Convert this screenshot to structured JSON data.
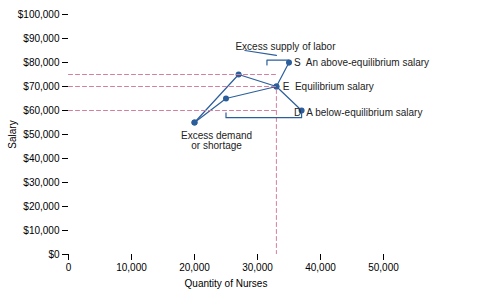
{
  "chart_data": {
    "type": "line",
    "xlabel": "Quantity of Nurses",
    "ylabel": "Salary",
    "xlim": [
      0,
      50000
    ],
    "ylim": [
      0,
      100000
    ],
    "xticks": [
      0,
      {
        "value": 10000,
        "label": "10,000"
      },
      {
        "value": 20000,
        "label": "20,000"
      },
      {
        "value": 30000,
        "label": "30,000"
      },
      {
        "value": 40000,
        "label": "40,000"
      },
      {
        "value": 50000,
        "label": "50,000"
      }
    ],
    "yticks": [
      {
        "value": 0,
        "label": "$0"
      },
      {
        "value": 10000,
        "label": "$10,000"
      },
      {
        "value": 20000,
        "label": "$20,000"
      },
      {
        "value": 30000,
        "label": "$30,000"
      },
      {
        "value": 40000,
        "label": "$40,000"
      },
      {
        "value": 50000,
        "label": "$50,000"
      },
      {
        "value": 60000,
        "label": "$60,000"
      },
      {
        "value": 70000,
        "label": "$70,000"
      },
      {
        "value": 80000,
        "label": "$80,000"
      },
      {
        "value": 90000,
        "label": "$90,000"
      },
      {
        "value": 100000,
        "label": "$100,000"
      }
    ],
    "grid": false,
    "series": [
      {
        "x": [
          20000,
          25000,
          33000,
          35000
        ],
        "values": [
          55000,
          65000,
          70000,
          80000
        ],
        "color": "#2B5F9B",
        "marker": "o",
        "line_style": "solid"
      },
      {
        "x": [
          20000,
          27000,
          33000,
          37000
        ],
        "values": [
          55000,
          75000,
          70000,
          60000
        ],
        "color": "#2B5F9B",
        "marker": "o",
        "line_style": "solid"
      },
      {
        "x": [
          0,
          33000
        ],
        "values": [
          75000,
          75000
        ],
        "color": "#D47EA0",
        "line_style": "dashed"
      },
      {
        "x": [
          0,
          33000
        ],
        "values": [
          70000,
          70000
        ],
        "color": "#D47EA0",
        "line_style": "dashed"
      },
      {
        "x": [
          0,
          33000
        ],
        "values": [
          60000,
          60000
        ],
        "color": "#D47EA0",
        "line_style": "dashed"
      },
      {
        "x": [
          33000,
          33000
        ],
        "values": [
          0,
          70000
        ],
        "color": "#D47EA0",
        "line_style": "dashed"
      },
      {
        "x": [
          31500,
          31500,
          35000,
          35000
        ],
        "values": [
          79000,
          81000,
          81000,
          79000
        ],
        "color": "#2B5F9B",
        "line_style": "solid"
      },
      {
        "x": [
          28000,
          33000
        ],
        "values": [
          85000,
          83000
        ],
        "color": "#2B5F9B",
        "line_style": "solid"
      },
      {
        "x": [
          25000,
          25000,
          37000,
          37000
        ],
        "values": [
          59000,
          57000,
          57000,
          59000
        ],
        "color": "#2B5F9B",
        "line_style": "solid"
      }
    ],
    "annotations": [
      {
        "text": "S  An above-equilibrium salary",
        "x": 35800,
        "y": 80000
      },
      {
        "text": "E  Equilibrium salary",
        "x": 34000,
        "y": 70000
      },
      {
        "text": "D  A below-equilibrium salary",
        "x": 35800,
        "y": 59000
      },
      {
        "text": "Excess supply of labor",
        "x": 26500,
        "y": 86500
      },
      {
        "text": "Excess demand\nor shortage",
        "x": 23500,
        "y": 51000
      }
    ]
  }
}
